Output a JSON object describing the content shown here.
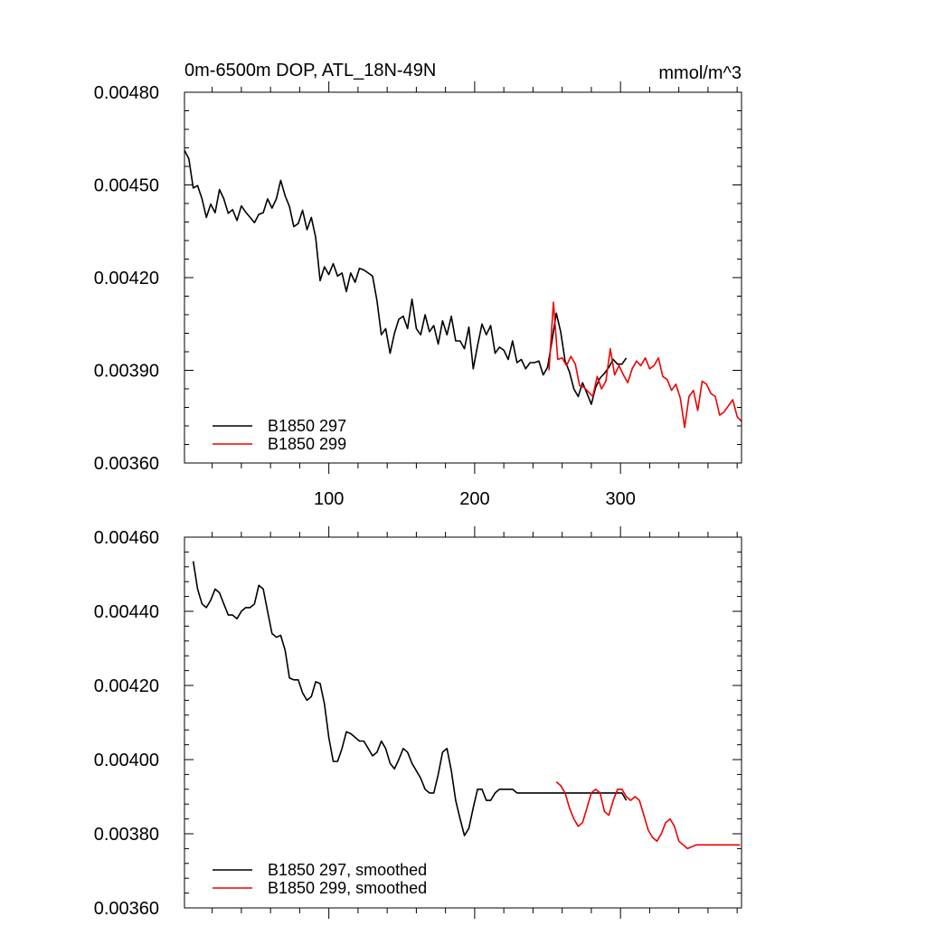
{
  "chart_data": [
    {
      "type": "line",
      "title": "0m-6500m DOP, ATL_18N-49N",
      "units": "mmol/m^3",
      "xlim": [
        1,
        383
      ],
      "ylim": [
        0.0036,
        0.0048
      ],
      "y_ticks": [
        0.0036,
        0.0039,
        0.0042,
        0.0045,
        0.0048
      ],
      "y_tick_labels": [
        "0.00360",
        "0.00390",
        "0.00420",
        "0.00450",
        "0.00480"
      ],
      "x_ticks": [
        100,
        200,
        300
      ],
      "x_tick_labels": [
        "100",
        "200",
        "300"
      ],
      "legend_position": "bottom-left",
      "series": [
        {
          "name": "B1850 297",
          "color": "#000000",
          "x": [
            1,
            4,
            7,
            10,
            13,
            16,
            19,
            22,
            25,
            28,
            31,
            34,
            37,
            40,
            43,
            46,
            49,
            52,
            55,
            58,
            61,
            64,
            67,
            70,
            73,
            76,
            79,
            82,
            85,
            88,
            91,
            94,
            97,
            100,
            103,
            106,
            109,
            112,
            115,
            118,
            121,
            124,
            127,
            130,
            133,
            136,
            139,
            142,
            145,
            148,
            151,
            154,
            157,
            160,
            163,
            166,
            169,
            172,
            175,
            178,
            181,
            184,
            187,
            190,
            193,
            196,
            199,
            202,
            205,
            208,
            211,
            214,
            217,
            220,
            223,
            226,
            229,
            232,
            235,
            238,
            241,
            244,
            247,
            250,
            253,
            256,
            259,
            262,
            265,
            268,
            271,
            274,
            277,
            280,
            283,
            286,
            289,
            292,
            295,
            298,
            301,
            304
          ],
          "values": [
            0.004612,
            0.004585,
            0.00449,
            0.004498,
            0.004455,
            0.004395,
            0.004438,
            0.00441,
            0.004485,
            0.004455,
            0.004408,
            0.00442,
            0.004385,
            0.004432,
            0.004412,
            0.004395,
            0.004378,
            0.004405,
            0.00441,
            0.004455,
            0.004425,
            0.004455,
            0.004515,
            0.004465,
            0.00443,
            0.004365,
            0.004375,
            0.004418,
            0.004355,
            0.004395,
            0.00433,
            0.00419,
            0.004235,
            0.00421,
            0.004245,
            0.004205,
            0.004215,
            0.004155,
            0.004215,
            0.004185,
            0.00423,
            0.004225,
            0.004215,
            0.004205,
            0.004125,
            0.004015,
            0.004035,
            0.003955,
            0.00402,
            0.004065,
            0.004075,
            0.004035,
            0.00413,
            0.004035,
            0.004015,
            0.00408,
            0.004025,
            0.004045,
            0.003985,
            0.00406,
            0.004015,
            0.004075,
            0.003995,
            0.003995,
            0.00397,
            0.00404,
            0.003905,
            0.00398,
            0.00405,
            0.004015,
            0.004045,
            0.003955,
            0.003975,
            0.003965,
            0.003935,
            0.003995,
            0.003925,
            0.003935,
            0.003905,
            0.003925,
            0.003925,
            0.00393,
            0.003885,
            0.00391,
            0.003995,
            0.004085,
            0.004025,
            0.00393,
            0.003895,
            0.00384,
            0.003815,
            0.00386,
            0.003825,
            0.00379,
            0.003845,
            0.003875,
            0.00389,
            0.00391,
            0.003935,
            0.00392,
            0.00392,
            0.00394
          ]
        },
        {
          "name": "B1850 299",
          "color": "#ee0000",
          "x": [
            251,
            254,
            257,
            260,
            263,
            266,
            269,
            272,
            275,
            278,
            281,
            284,
            287,
            290,
            293,
            296,
            299,
            302,
            305,
            308,
            311,
            314,
            317,
            320,
            323,
            326,
            329,
            332,
            335,
            338,
            341,
            344,
            347,
            350,
            353,
            356,
            359,
            362,
            365,
            368,
            371,
            374,
            377,
            380,
            383
          ],
          "values": [
            0.0039,
            0.00412,
            0.003935,
            0.00394,
            0.003915,
            0.003945,
            0.00392,
            0.00385,
            0.003845,
            0.00383,
            0.003815,
            0.00388,
            0.00384,
            0.003865,
            0.00397,
            0.003885,
            0.003915,
            0.003885,
            0.00386,
            0.003905,
            0.00393,
            0.003915,
            0.00394,
            0.003905,
            0.003915,
            0.00394,
            0.00388,
            0.00387,
            0.003835,
            0.003855,
            0.00381,
            0.003715,
            0.003815,
            0.003835,
            0.00377,
            0.003865,
            0.003855,
            0.003825,
            0.003815,
            0.003755,
            0.003765,
            0.003785,
            0.003805,
            0.00375,
            0.003735
          ]
        }
      ]
    },
    {
      "type": "line",
      "xlim": [
        1,
        383
      ],
      "ylim": [
        0.0036,
        0.0046
      ],
      "y_ticks": [
        0.0036,
        0.0038,
        0.004,
        0.0042,
        0.0044,
        0.0046
      ],
      "y_tick_labels": [
        "0.00360",
        "0.00380",
        "0.00400",
        "0.00420",
        "0.00440",
        "0.00460"
      ],
      "x_ticks": [
        100,
        200,
        300
      ],
      "legend_position": "bottom-left",
      "series": [
        {
          "name": "B1850 297, smoothed",
          "color": "#000000",
          "x": [
            7,
            10,
            13,
            16,
            19,
            22,
            25,
            28,
            31,
            34,
            37,
            40,
            43,
            46,
            49,
            52,
            55,
            58,
            61,
            64,
            67,
            70,
            73,
            76,
            79,
            82,
            85,
            88,
            91,
            94,
            97,
            100,
            103,
            106,
            109,
            112,
            115,
            118,
            121,
            124,
            127,
            130,
            133,
            136,
            139,
            142,
            145,
            148,
            151,
            154,
            157,
            160,
            163,
            166,
            169,
            172,
            175,
            178,
            181,
            184,
            187,
            190,
            193,
            196,
            199,
            202,
            205,
            208,
            211,
            214,
            217,
            220,
            223,
            226,
            229,
            232,
            235,
            238,
            241,
            244,
            247,
            250,
            253,
            256,
            259,
            262,
            265,
            268,
            271,
            274,
            277,
            280,
            283,
            286,
            289,
            292,
            295,
            298,
            301,
            304
          ],
          "values": [
            0.004535,
            0.00446,
            0.00442,
            0.00441,
            0.00443,
            0.00446,
            0.00445,
            0.00442,
            0.00439,
            0.00439,
            0.00438,
            0.0044,
            0.00441,
            0.00441,
            0.00442,
            0.00447,
            0.00446,
            0.0044,
            0.00434,
            0.00433,
            0.004335,
            0.004295,
            0.00422,
            0.004215,
            0.004215,
            0.00418,
            0.00416,
            0.00417,
            0.00421,
            0.004205,
            0.00415,
            0.00406,
            0.003995,
            0.003995,
            0.00403,
            0.004075,
            0.00407,
            0.00406,
            0.00405,
            0.00405,
            0.00403,
            0.00401,
            0.00402,
            0.00405,
            0.00403,
            0.00399,
            0.003975,
            0.004,
            0.00403,
            0.00402,
            0.00399,
            0.00397,
            0.00395,
            0.00392,
            0.00391,
            0.00391,
            0.00396,
            0.00402,
            0.00403,
            0.00397,
            0.00389,
            0.00384,
            0.003795,
            0.003815,
            0.00387,
            0.00392,
            0.00392,
            0.00389,
            0.00389,
            0.00391,
            0.00392,
            0.00392,
            0.00392,
            0.00392,
            0.00391,
            0.00391,
            0.00391,
            0.00391,
            0.00391,
            0.00391,
            0.00391,
            0.00391,
            0.00391,
            0.00391,
            0.00391,
            0.00391,
            0.00391,
            0.00391,
            0.00391,
            0.00391,
            0.00391,
            0.00391,
            0.00391,
            0.00391,
            0.00391,
            0.00391,
            0.00391,
            0.00391,
            0.00391,
            0.00389
          ]
        },
        {
          "name": "B1850 299, smoothed",
          "color": "#ee0000",
          "x": [
            256,
            259,
            262,
            265,
            268,
            271,
            274,
            277,
            280,
            283,
            286,
            289,
            292,
            295,
            298,
            301,
            304,
            307,
            310,
            313,
            316,
            319,
            322,
            325,
            328,
            331,
            334,
            337,
            340,
            343,
            346,
            349,
            352,
            355,
            358,
            361,
            364,
            367,
            370,
            373,
            376,
            379,
            382
          ],
          "values": [
            0.00394,
            0.00393,
            0.00391,
            0.00387,
            0.00384,
            0.00382,
            0.00383,
            0.00387,
            0.00391,
            0.00392,
            0.00391,
            0.00386,
            0.00385,
            0.00389,
            0.00392,
            0.00392,
            0.0039,
            0.00389,
            0.0039,
            0.00389,
            0.00385,
            0.00381,
            0.00379,
            0.00378,
            0.0038,
            0.00383,
            0.00384,
            0.00382,
            0.00378,
            0.00377,
            0.00376,
            0.003765,
            0.00377,
            0.00377,
            0.00377,
            0.00377,
            0.00377,
            0.00377,
            0.00377,
            0.00377,
            0.00377,
            0.00377,
            0.00377
          ]
        }
      ]
    }
  ]
}
